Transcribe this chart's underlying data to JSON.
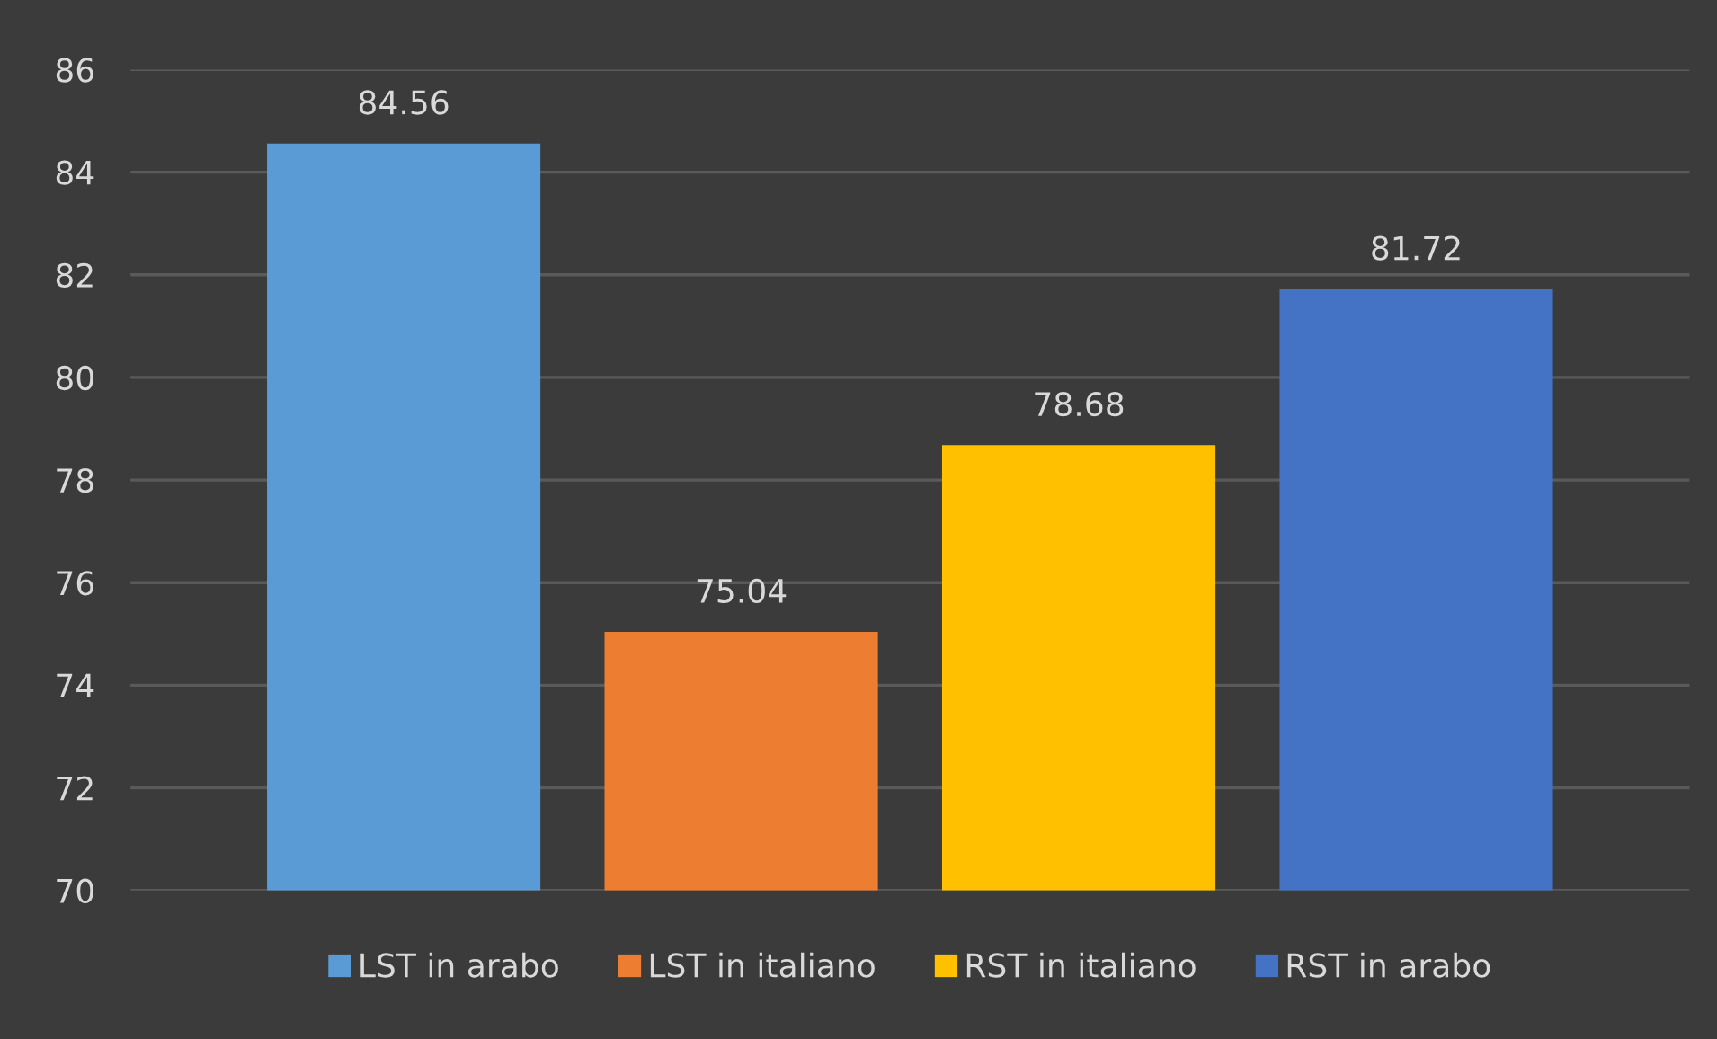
{
  "chart_data": {
    "type": "bar",
    "categories": [
      null
    ],
    "series": [
      {
        "name": "LST in arabo",
        "color": "#5b9bd5",
        "values": [
          84.56
        ]
      },
      {
        "name": "LST in italiano",
        "color": "#ed7d31",
        "values": [
          75.04
        ]
      },
      {
        "name": "RST in italiano",
        "color": "#ffc000",
        "values": [
          78.68
        ]
      },
      {
        "name": "RST in arabo",
        "color": "#4472c4",
        "values": [
          81.72
        ]
      }
    ],
    "ylim": [
      70,
      86
    ],
    "yticks": [
      70,
      72,
      74,
      76,
      78,
      80,
      82,
      84,
      86
    ],
    "grid": "y",
    "legend": "bottom",
    "data_labels": true
  }
}
